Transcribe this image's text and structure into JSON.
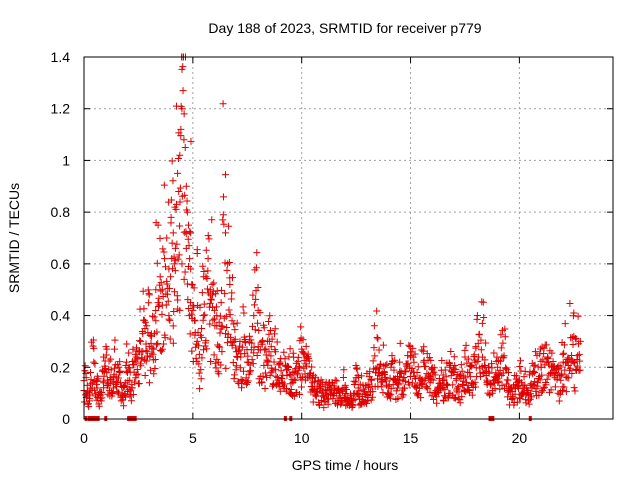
{
  "chart_data": {
    "type": "scatter",
    "title": "Day 188 of 2023, SRMTID for receiver p779",
    "xlabel": "GPS time / hours",
    "ylabel": "SRMTID / TECUs",
    "xlim": [
      0,
      24.3
    ],
    "ylim": [
      0,
      1.4
    ],
    "xticks": [
      0,
      5,
      10,
      15,
      20
    ],
    "xtick_labels": [
      "0",
      "5",
      "10",
      "15",
      "20"
    ],
    "yticks": [
      0,
      0.2,
      0.4,
      0.6,
      0.8,
      1.0,
      1.2,
      1.4
    ],
    "ytick_labels": [
      "0",
      "0.2",
      "0.4",
      "0.6",
      "0.8",
      "1",
      "1.2",
      "1.4"
    ],
    "grid": true,
    "marker": "plus",
    "color": "#e00000",
    "series": [
      {
        "name": "SRMTID",
        "x": [
          0.0,
          0.15,
          0.3,
          0.45,
          0.6,
          0.75,
          0.9,
          1.05,
          1.2,
          1.35,
          1.5,
          1.65,
          1.8,
          1.95,
          2.1,
          2.25,
          2.4,
          2.55,
          2.7,
          2.85,
          3.0,
          3.1,
          3.2,
          3.3,
          3.4,
          3.5,
          3.6,
          3.7,
          3.8,
          3.9,
          4.0,
          4.05,
          4.1,
          4.15,
          4.2,
          4.25,
          4.3,
          4.35,
          4.4,
          4.45,
          4.5,
          4.55,
          4.6,
          4.65,
          4.7,
          4.75,
          4.8,
          4.85,
          4.9,
          4.95,
          5.0,
          5.1,
          5.2,
          5.3,
          5.4,
          5.5,
          5.6,
          5.7,
          5.8,
          5.9,
          6.0,
          6.1,
          6.2,
          6.3,
          6.4,
          6.5,
          6.6,
          6.7,
          6.8,
          6.9,
          7.0,
          7.2,
          7.4,
          7.6,
          7.8,
          8.0,
          8.2,
          8.4,
          8.6,
          8.8,
          9.0,
          9.3,
          9.6,
          9.9,
          10.2,
          10.5,
          10.8,
          11.1,
          11.4,
          11.7,
          12.0,
          12.3,
          12.6,
          12.9,
          13.2,
          13.5,
          13.8,
          14.1,
          14.4,
          14.7,
          15.0,
          15.3,
          15.6,
          15.9,
          16.2,
          16.5,
          16.8,
          17.1,
          17.4,
          17.7,
          18.0,
          18.3,
          18.6,
          18.9,
          19.2,
          19.5,
          19.8,
          20.1,
          20.4,
          20.7,
          21.0,
          21.3,
          21.6,
          21.9,
          22.2,
          22.5,
          22.8,
          0.1,
          0.25,
          0.6,
          0.9,
          1.1,
          1.25,
          1.4,
          1.6,
          1.75,
          1.9,
          2.0,
          2.2,
          2.4,
          2.6,
          2.8,
          3.0,
          3.3,
          3.6,
          3.9,
          4.1,
          4.3,
          4.4,
          4.5,
          4.6,
          4.7,
          4.8,
          4.9,
          5.2,
          5.5,
          5.8,
          6.1,
          6.3,
          6.5,
          7.5,
          8.0,
          8.5,
          9.0,
          9.5,
          10.0,
          10.5,
          11.0,
          11.5,
          12.0,
          12.5,
          13.0,
          13.5,
          14.0,
          14.5,
          15.0,
          15.5,
          16.0,
          16.5,
          17.0,
          17.5,
          18.0,
          18.5,
          19.0,
          19.5,
          20.0,
          20.5,
          21.0,
          21.5,
          22.0,
          22.5
        ],
        "y": [
          0.11,
          0.13,
          0.18,
          0.22,
          0.12,
          0.09,
          0.24,
          0.27,
          0.16,
          0.12,
          0.14,
          0.18,
          0.09,
          0.22,
          0.15,
          0.21,
          0.17,
          0.26,
          0.33,
          0.29,
          0.48,
          0.32,
          0.27,
          0.38,
          0.45,
          0.55,
          0.5,
          0.62,
          0.7,
          0.58,
          0.78,
          0.68,
          0.72,
          0.6,
          0.66,
          0.83,
          0.95,
          0.88,
          1.02,
          1.12,
          1.2,
          1.27,
          1.18,
          1.05,
          0.9,
          0.8,
          0.75,
          0.62,
          0.58,
          0.52,
          0.42,
          0.38,
          0.3,
          0.25,
          0.35,
          0.4,
          0.55,
          0.62,
          0.5,
          0.48,
          0.42,
          0.36,
          0.28,
          0.45,
          0.79,
          0.72,
          0.6,
          0.52,
          0.38,
          0.3,
          0.26,
          0.24,
          0.3,
          0.32,
          0.4,
          0.42,
          0.3,
          0.22,
          0.28,
          0.26,
          0.22,
          0.19,
          0.18,
          0.2,
          0.24,
          0.16,
          0.12,
          0.1,
          0.14,
          0.11,
          0.13,
          0.08,
          0.12,
          0.1,
          0.15,
          0.31,
          0.18,
          0.2,
          0.12,
          0.16,
          0.24,
          0.18,
          0.22,
          0.14,
          0.1,
          0.17,
          0.2,
          0.15,
          0.13,
          0.18,
          0.22,
          0.37,
          0.2,
          0.16,
          0.24,
          0.18,
          0.12,
          0.14,
          0.11,
          0.18,
          0.2,
          0.24,
          0.17,
          0.15,
          0.22,
          0.41,
          0.3,
          0.16,
          0.07,
          0.15,
          0.14,
          0.13,
          0.19,
          0.27,
          0.2,
          0.1,
          0.14,
          0.18,
          0.12,
          0.24,
          0.3,
          0.35,
          0.28,
          0.5,
          0.44,
          0.4,
          0.36,
          0.46,
          0.42,
          0.6,
          0.54,
          0.66,
          0.59,
          0.72,
          0.64,
          0.55,
          0.48,
          0.4,
          0.36,
          0.33,
          0.22,
          0.28,
          0.26,
          0.21,
          0.17,
          0.27,
          0.14,
          0.09,
          0.12,
          0.08,
          0.16,
          0.13,
          0.2,
          0.1,
          0.22,
          0.26,
          0.15,
          0.19,
          0.12,
          0.18,
          0.24,
          0.28,
          0.14,
          0.2,
          0.11,
          0.15,
          0.13,
          0.2,
          0.18,
          0.25,
          0.22
        ]
      }
    ],
    "rug_hours": [
      0.1,
      0.25,
      0.35,
      0.45,
      0.55,
      0.65,
      1.0,
      2.05,
      2.15,
      2.25,
      2.35,
      9.25,
      9.5,
      18.65,
      18.78,
      20.5
    ]
  }
}
